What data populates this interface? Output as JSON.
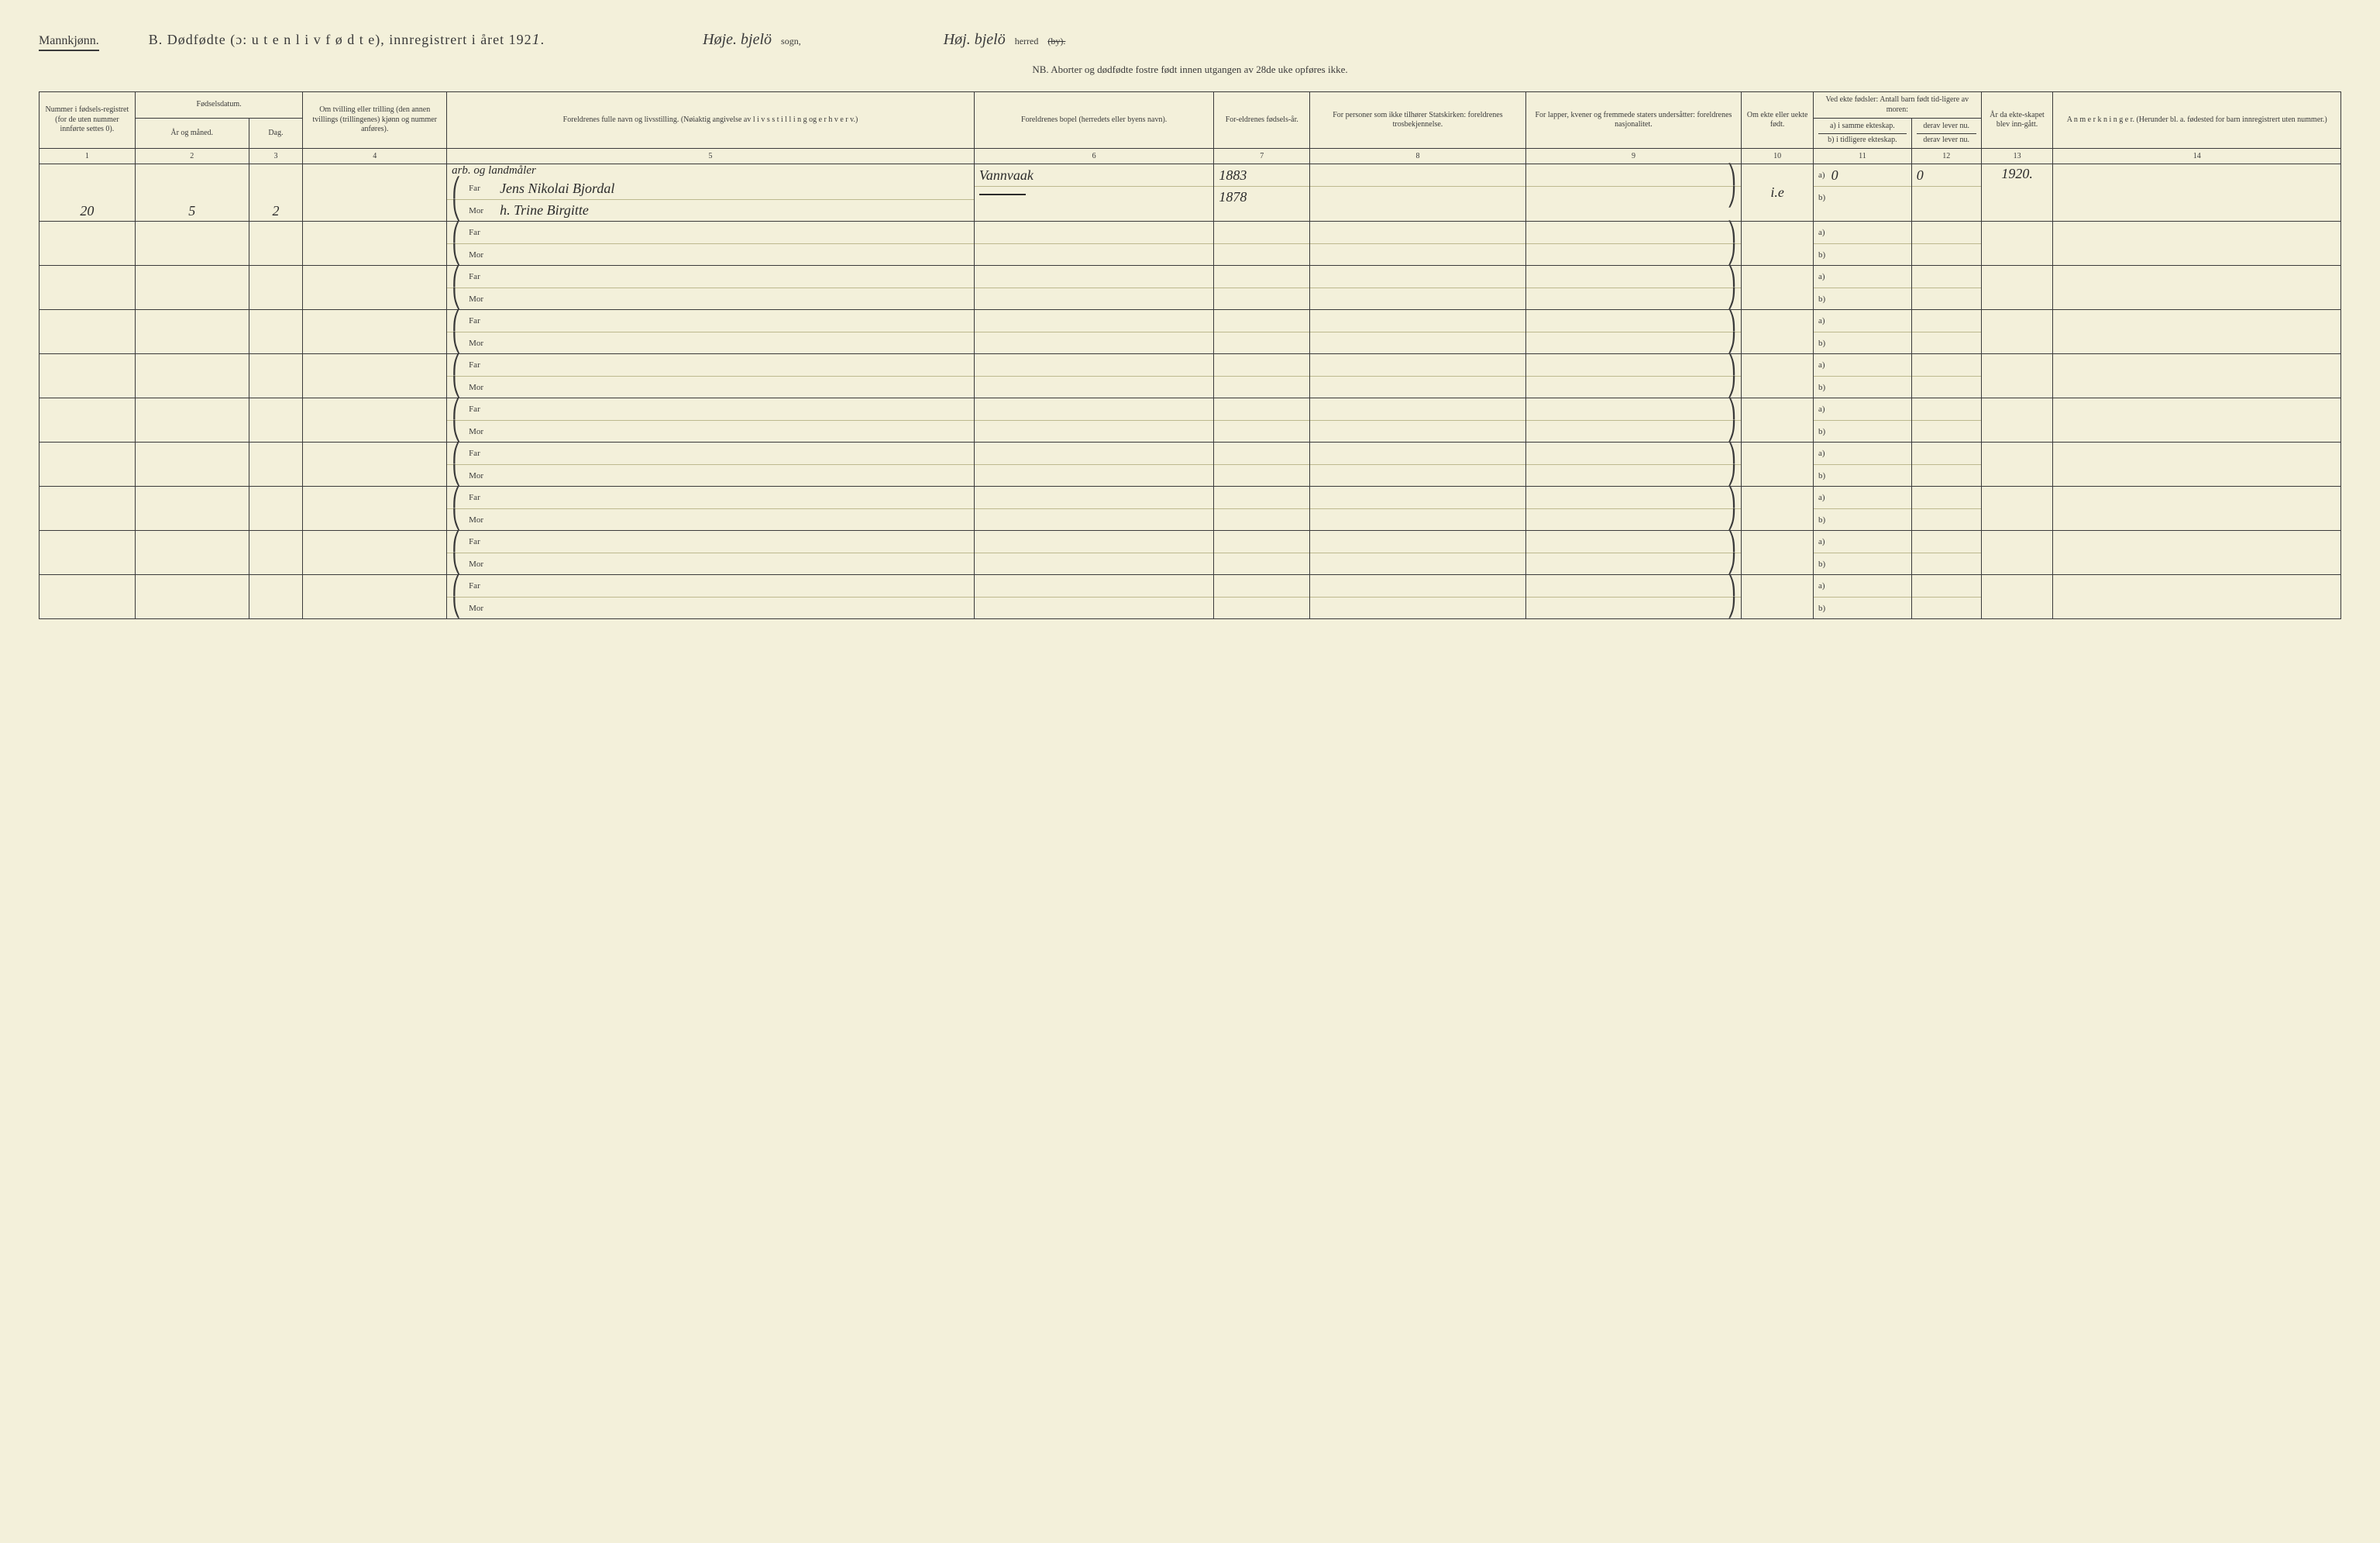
{
  "header": {
    "mannkjonn": "Mannkjønn.",
    "title_b": "B.  Dødfødte (ɔ:  u t e n  l i v  f ø d t e),  innregistrert i året 192",
    "year_hand": "1",
    "period": ".",
    "sogn_hand": "Høje. bjelö",
    "sogn_label": "sogn,",
    "herred_hand": "Høj. bjelö",
    "herred_label": "herred",
    "by_strike": "(by).",
    "nb": "NB.  Aborter og dødfødte fostre født innen utgangen av 28de uke opføres ikke."
  },
  "columns": {
    "c1": "Nummer i fødsels-registret (for de uten nummer innførte settes 0).",
    "c23_group": "Fødselsdatum.",
    "c2": "År og måned.",
    "c3": "Dag.",
    "c4": "Om tvilling eller trilling (den annen tvillings (trillingenes) kjønn og nummer anføres).",
    "c5": "Foreldrenes fulle navn og livsstilling. (Nøiaktig angivelse av  l i v s s t i l l i n g  og  e r h v e r v.)",
    "c6": "Foreldrenes bopel (herredets eller byens navn).",
    "c7": "For-eldrenes fødsels-år.",
    "c8": "For personer som ikke tilhører Statskirken: foreldrenes trosbekjennelse.",
    "c9": "For lapper, kvener og fremmede staters undersåtter: foreldrenes nasjonalitet.",
    "c10": "Om ekte eller uekte født.",
    "c11_group": "Ved ekte fødsler: Antall barn født tid-ligere av moren:",
    "c11a": "a) i samme ekteskap.",
    "c11b": "b) i tidligere ekteskap.",
    "c12": "derav lever nu.",
    "c12b": "derav lever nu.",
    "c13": "År da ekte-skapet blev inn-gått.",
    "c14": "A n m e r k n i n g e r. (Herunder bl. a. fødested for barn innregistrert uten nummer.)"
  },
  "colnums": [
    "1",
    "2",
    "3",
    "4",
    "5",
    "6",
    "7",
    "8",
    "9",
    "10",
    "11",
    "12",
    "13",
    "14"
  ],
  "far": "Far",
  "mor": "Mor",
  "ab_a": "a)",
  "ab_b": "b)",
  "row1": {
    "c1": "20",
    "c2": "5",
    "c3": "2",
    "occupation": "arb. og landmåler",
    "far_name": "Jens Nikolai Bjordal",
    "mor_name": "h. Trine Birgitte",
    "c6_far": "Vannvaak",
    "c7_far": "1883",
    "c7_mor": "1878",
    "c10": "i.e",
    "c11a_val1": "0",
    "c11a_val2": "0",
    "c13": "1920."
  }
}
